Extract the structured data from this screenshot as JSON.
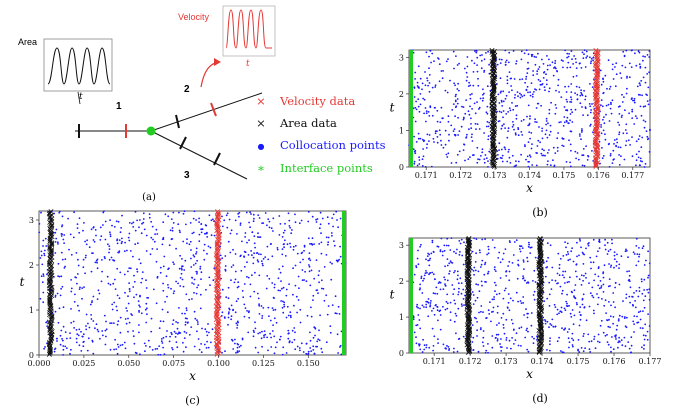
{
  "schematic": {
    "caption": "(a)",
    "area_label": "Area",
    "velocity_label": "Velocity",
    "time_symbol": "t",
    "segments": [
      "1",
      "2",
      "3"
    ],
    "colors": {
      "velocity": "#e53935",
      "area": "#111111",
      "collocation": "#1a1aff",
      "interface": "#22cc22"
    }
  },
  "legend": [
    {
      "marker": "×",
      "text": "Velocity data",
      "color": "#e53935"
    },
    {
      "marker": "×",
      "text": "Area data",
      "color": "#111111"
    },
    {
      "marker": "●",
      "text": "Collocation points",
      "color": "#1a1aff"
    },
    {
      "marker": "∗",
      "text": "Interface points",
      "color": "#22cc22"
    }
  ],
  "chart_data": [
    {
      "panel": "(b)",
      "type": "scatter",
      "xlabel": "x",
      "ylabel": "t",
      "xlim": [
        0.1705,
        0.1775
      ],
      "ylim": [
        0,
        3.2
      ],
      "xticks": [
        "0.171",
        "0.172",
        "0.173",
        "0.174",
        "0.175",
        "0.176",
        "0.177"
      ],
      "yticks": [
        "0",
        "1",
        "2",
        "3"
      ],
      "series": [
        {
          "kind": "collocation",
          "color": "#1a1aff",
          "count": 900
        },
        {
          "kind": "area",
          "color": "#111111",
          "x": 0.17295
        },
        {
          "kind": "velocity",
          "color": "#e53935",
          "x": 0.17595
        },
        {
          "kind": "interface",
          "color": "#22cc22",
          "x": 0.1705
        }
      ]
    },
    {
      "panel": "(c)",
      "type": "scatter",
      "xlabel": "x",
      "ylabel": "t",
      "xlim": [
        0,
        0.171
      ],
      "ylim": [
        0,
        3.2
      ],
      "xticks": [
        "0.000",
        "0.025",
        "0.050",
        "0.075",
        "0.100",
        "0.125",
        "0.150"
      ],
      "yticks": [
        "0",
        "1",
        "2",
        "3"
      ],
      "series": [
        {
          "kind": "collocation",
          "color": "#1a1aff",
          "count": 1100
        },
        {
          "kind": "area",
          "color": "#111111",
          "x": 0.0065
        },
        {
          "kind": "velocity",
          "color": "#e53935",
          "x": 0.0995
        },
        {
          "kind": "interface",
          "color": "#22cc22",
          "x": 0.171
        }
      ]
    },
    {
      "panel": "(d)",
      "type": "scatter",
      "xlabel": "x",
      "ylabel": "t",
      "xlim": [
        0.1703,
        0.177
      ],
      "ylim": [
        0,
        3.2
      ],
      "xticks": [
        "0.171",
        "0.172",
        "0.173",
        "0.174",
        "0.175",
        "0.176",
        "0.177"
      ],
      "yticks": [
        "0",
        "1",
        "2",
        "3"
      ],
      "series": [
        {
          "kind": "collocation",
          "color": "#1a1aff",
          "count": 850
        },
        {
          "kind": "area",
          "color": "#111111",
          "x": 0.17195
        },
        {
          "kind": "area",
          "color": "#111111",
          "x": 0.17395
        },
        {
          "kind": "interface",
          "color": "#22cc22",
          "x": 0.1703
        }
      ]
    }
  ]
}
